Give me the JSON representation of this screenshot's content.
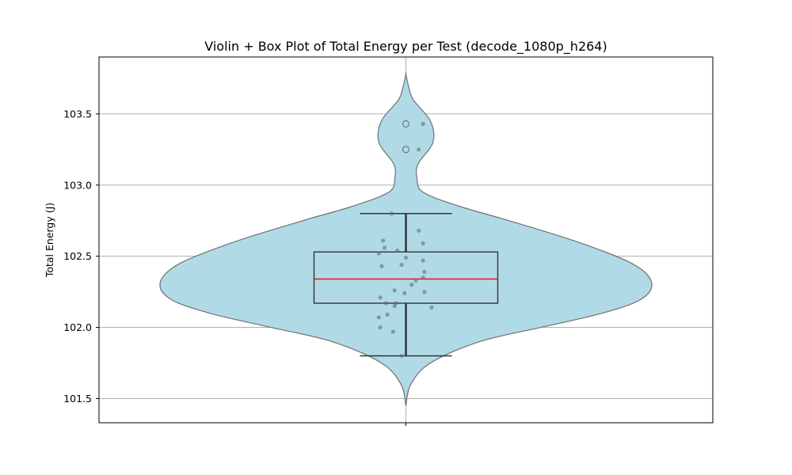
{
  "chart_data": {
    "type": "violin",
    "title": "Violin + Box Plot of Total Energy per Test (decode_1080p_h264)",
    "xlabel": "",
    "ylabel": "Total Energy (J)",
    "ylim": [
      101.33,
      103.9
    ],
    "yticks": [
      "101.5",
      "102.0",
      "102.5",
      "103.0",
      "103.5"
    ],
    "grid": true,
    "categories": [
      ""
    ],
    "colors": {
      "violin_fill": "#add8e6",
      "violin_edge": "#707070",
      "box_edge": "#333333",
      "median": "#ff0000",
      "points": "#6a6a6a",
      "grid": "#b0b0b0"
    },
    "violin_profile": [
      [
        101.45,
        0.0
      ],
      [
        101.6,
        0.02
      ],
      [
        101.75,
        0.1
      ],
      [
        101.9,
        0.3
      ],
      [
        102.0,
        0.55
      ],
      [
        102.1,
        0.8
      ],
      [
        102.2,
        0.96
      ],
      [
        102.32,
        1.0
      ],
      [
        102.45,
        0.92
      ],
      [
        102.6,
        0.7
      ],
      [
        102.75,
        0.42
      ],
      [
        102.85,
        0.22
      ],
      [
        102.95,
        0.07
      ],
      [
        103.05,
        0.045
      ],
      [
        103.15,
        0.05
      ],
      [
        103.3,
        0.11
      ],
      [
        103.45,
        0.1
      ],
      [
        103.6,
        0.03
      ],
      [
        103.7,
        0.01
      ],
      [
        103.78,
        0.0
      ]
    ],
    "box": {
      "whisker_low": 101.8,
      "q1": 102.17,
      "median": 102.34,
      "q3": 102.53,
      "whisker_high": 102.8
    },
    "outliers": [
      103.43,
      103.25
    ],
    "points": [
      {
        "y": 103.43,
        "dx": 0.12
      },
      {
        "y": 103.25,
        "dx": 0.09
      },
      {
        "y": 102.8,
        "dx": -0.1
      },
      {
        "y": 102.68,
        "dx": 0.09
      },
      {
        "y": 102.61,
        "dx": -0.16
      },
      {
        "y": 102.59,
        "dx": 0.12
      },
      {
        "y": 102.56,
        "dx": -0.15
      },
      {
        "y": 102.54,
        "dx": -0.06
      },
      {
        "y": 102.52,
        "dx": -0.19
      },
      {
        "y": 102.49,
        "dx": 0.0
      },
      {
        "y": 102.47,
        "dx": 0.12
      },
      {
        "y": 102.44,
        "dx": -0.03
      },
      {
        "y": 102.43,
        "dx": -0.17
      },
      {
        "y": 102.39,
        "dx": 0.13
      },
      {
        "y": 102.35,
        "dx": 0.12
      },
      {
        "y": 102.33,
        "dx": 0.07
      },
      {
        "y": 102.3,
        "dx": 0.04
      },
      {
        "y": 102.26,
        "dx": -0.08
      },
      {
        "y": 102.25,
        "dx": 0.13
      },
      {
        "y": 102.24,
        "dx": -0.01
      },
      {
        "y": 102.21,
        "dx": -0.18
      },
      {
        "y": 102.17,
        "dx": -0.14
      },
      {
        "y": 102.17,
        "dx": -0.07
      },
      {
        "y": 102.15,
        "dx": -0.08
      },
      {
        "y": 102.14,
        "dx": 0.18
      },
      {
        "y": 102.09,
        "dx": -0.13
      },
      {
        "y": 102.07,
        "dx": -0.19
      },
      {
        "y": 102.0,
        "dx": -0.18
      },
      {
        "y": 101.97,
        "dx": -0.09
      },
      {
        "y": 101.8,
        "dx": -0.03
      }
    ]
  }
}
